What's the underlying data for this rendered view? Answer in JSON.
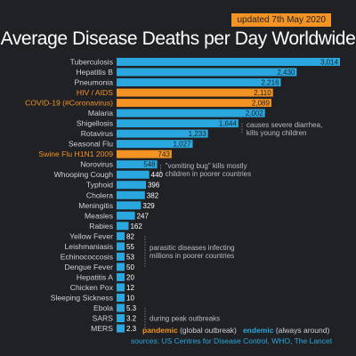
{
  "header": {
    "updated": "updated 7th May 2020",
    "title": "Average Disease Deaths per Day Worldwide"
  },
  "colors": {
    "endemic_bar": "#2aa7de",
    "pandemic_bar": "#f39324",
    "endemic_label": "#cfd2d6",
    "pandemic_label": "#f39324",
    "background": "#1f2124"
  },
  "chart_data": {
    "type": "bar",
    "orientation": "horizontal",
    "title": "Average Disease Deaths per Day Worldwide",
    "categories": [
      "Tuberculosis",
      "Hepatitis B",
      "Pneumonia",
      "HIV / AIDS",
      "COVID-19 (#Coronavirus)",
      "Malaria",
      "Shigellosis",
      "Rotavirus",
      "Seasonal Flu",
      "Swine Flu H1N1 2009",
      "Norovirus",
      "Whooping Cough",
      "Typhoid",
      "Cholera",
      "Meningitis",
      "Measles",
      "Rabies",
      "Yellow Fever",
      "Leishmaniasis",
      "Echinococcosis",
      "Dengue Fever",
      "Hepatitis A",
      "Chicken Pox",
      "Sleeping Sickness",
      "Ebola",
      "SARS",
      "MERS"
    ],
    "values": [
      3014,
      2430,
      2216,
      2110,
      2089,
      2002,
      1644,
      1233,
      1027,
      743,
      548,
      440,
      396,
      382,
      329,
      247,
      162,
      82,
      55,
      53,
      50,
      20,
      12,
      10,
      5.3,
      3.2,
      2.3
    ],
    "value_labels": [
      "3,014",
      "2,430",
      "2,216",
      "2,110",
      "2,089",
      "2,002",
      "1,644",
      "1,233",
      "1,027",
      "743",
      "548",
      "440",
      "396",
      "382",
      "329",
      "247",
      "162",
      "82",
      "55",
      "53",
      "50",
      "20",
      "12",
      "10",
      "5.3",
      "3.2",
      "2.3"
    ],
    "pandemic": [
      false,
      false,
      false,
      true,
      true,
      false,
      false,
      false,
      false,
      true,
      false,
      false,
      false,
      false,
      false,
      false,
      false,
      false,
      false,
      false,
      false,
      false,
      false,
      false,
      false,
      false,
      false
    ],
    "annotations": [
      {
        "lines": [
          "causes severe diarrhea,",
          "kills young children"
        ],
        "rows": [
          6,
          7
        ]
      },
      {
        "lines": [
          "\"vomiting bug\" kills mostly",
          "children in poorer countries"
        ],
        "rows": [
          10,
          11
        ]
      },
      {
        "lines": [
          "parasitic diseases infecting",
          "millions in poorer countries"
        ],
        "rows": [
          17,
          20
        ]
      },
      {
        "lines": [
          "during peak outbreaks"
        ],
        "rows": [
          24,
          26
        ]
      }
    ]
  },
  "legend": {
    "pandemic": "pandemic",
    "pandemic_note": "(global outbreak)",
    "endemic": "endemic",
    "endemic_note": "(always around)"
  },
  "source": "sources: US Centres for Disease Control, WHO, The Lancet"
}
